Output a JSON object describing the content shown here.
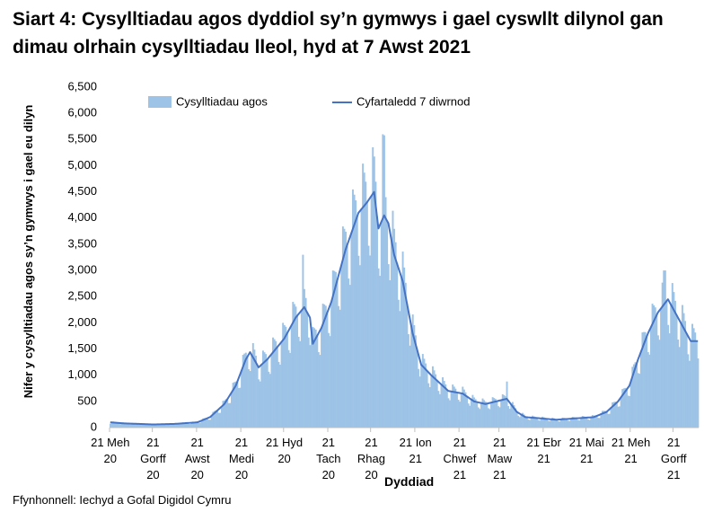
{
  "chart_data": {
    "type": "bar",
    "title": "Siart 4: Cysylltiadau agos dyddiol sy’n gymwys i gael cyswllt dilynol gan dimau olrhain cysylltiadau lleol, hyd at 7 Awst 2021",
    "y_label": "Nifer y cysylltiadau agos sy’n gymwys i gael eu dilyn",
    "x_label": "Dyddiad",
    "source": "Ffynhonnell: Iechyd a Gofal Digidol Cymru",
    "legend": "top",
    "grid": false,
    "ylim": [
      0,
      6500
    ],
    "yticks": [
      0,
      500,
      {
        "value": 1000,
        "label": "1,000"
      },
      {
        "value": 1500,
        "label": "1,500"
      },
      {
        "value": 2000,
        "label": "2,000"
      },
      {
        "value": 2500,
        "label": "2,500"
      },
      {
        "value": 3000,
        "label": "3,000"
      },
      {
        "value": 3500,
        "label": "3,500"
      },
      {
        "value": 4000,
        "label": "4,000"
      },
      {
        "value": 4500,
        "label": "4,500"
      },
      {
        "value": 5000,
        "label": "5,000"
      },
      {
        "value": 5500,
        "label": "5,500"
      },
      {
        "value": 6000,
        "label": "6,000"
      },
      {
        "value": 6500,
        "label": "6,500"
      }
    ],
    "categories": [
      "21 Meh 20",
      null,
      null,
      null,
      null,
      null,
      null,
      null,
      null,
      null,
      null,
      null,
      null,
      null,
      null,
      null,
      null,
      null,
      null,
      null,
      null,
      null,
      null,
      null,
      null,
      null,
      null,
      null,
      null,
      null,
      "21 Gorff 20",
      null,
      null,
      null,
      null,
      null,
      null,
      null,
      null,
      null,
      null,
      null,
      null,
      null,
      null,
      null,
      null,
      null,
      null,
      null,
      null,
      null,
      null,
      null,
      null,
      null,
      null,
      null,
      null,
      null,
      null,
      "21 Awst 20",
      null,
      null,
      null,
      null,
      null,
      null,
      null,
      null,
      null,
      null,
      null,
      null,
      null,
      null,
      null,
      null,
      null,
      null,
      null,
      null,
      null,
      null,
      null,
      null,
      null,
      null,
      null,
      null,
      null,
      null,
      "21 Medi 20",
      null,
      null,
      null,
      null,
      null,
      null,
      null,
      null,
      null,
      null,
      null,
      null,
      null,
      null,
      null,
      null,
      null,
      null,
      null,
      null,
      null,
      null,
      null,
      null,
      null,
      null,
      null,
      null,
      null,
      "21 Hyd 20",
      null,
      null,
      null,
      null,
      null,
      null,
      null,
      null,
      null,
      null,
      null,
      null,
      null,
      null,
      null,
      null,
      null,
      null,
      null,
      null,
      null,
      null,
      null,
      null,
      null,
      null,
      null,
      null,
      null,
      null,
      "21 Tach 20",
      null,
      null,
      null,
      null,
      null,
      null,
      null,
      null,
      null,
      null,
      null,
      null,
      null,
      null,
      null,
      null,
      null,
      null,
      null,
      null,
      null,
      null,
      null,
      null,
      null,
      null,
      null,
      null,
      null,
      "21 Rhag 20",
      null,
      null,
      null,
      null,
      null,
      null,
      null,
      null,
      null,
      null,
      null,
      null,
      null,
      null,
      null,
      null,
      null,
      null,
      null,
      null,
      null,
      null,
      null,
      null,
      null,
      null,
      null,
      null,
      null,
      null,
      "21 Ion 21",
      null,
      null,
      null,
      null,
      null,
      null,
      null,
      null,
      null,
      null,
      null,
      null,
      null,
      null,
      null,
      null,
      null,
      null,
      null,
      null,
      null,
      null,
      null,
      null,
      null,
      null,
      null,
      null,
      null,
      null,
      "21 Chwef 21",
      null,
      null,
      null,
      null,
      null,
      null,
      null,
      null,
      null,
      null,
      null,
      null,
      null,
      null,
      null,
      null,
      null,
      null,
      null,
      null,
      null,
      null,
      null,
      null,
      null,
      null,
      null,
      "21 Maw 21",
      null,
      null,
      null,
      null,
      null,
      null,
      null,
      null,
      null,
      null,
      null,
      null,
      null,
      null,
      null,
      null,
      null,
      null,
      null,
      null,
      null,
      null,
      null,
      null,
      null,
      null,
      null,
      null,
      null,
      null,
      "21 Ebr 21",
      null,
      null,
      null,
      null,
      null,
      null,
      null,
      null,
      null,
      null,
      null,
      null,
      null,
      null,
      null,
      null,
      null,
      null,
      null,
      null,
      null,
      null,
      null,
      null,
      null,
      null,
      null,
      null,
      null,
      "21 Mai 21",
      null,
      null,
      null,
      null,
      null,
      null,
      null,
      null,
      null,
      null,
      null,
      null,
      null,
      null,
      null,
      null,
      null,
      null,
      null,
      null,
      null,
      null,
      null,
      null,
      null,
      null,
      null,
      null,
      null,
      null,
      "21 Meh 21",
      null,
      null,
      null,
      null,
      null,
      null,
      null,
      null,
      null,
      null,
      null,
      null,
      null,
      null,
      null,
      null,
      null,
      null,
      null,
      null,
      null,
      null,
      null,
      null,
      null,
      null,
      null,
      null,
      null,
      "21 Gorff 21",
      null,
      null,
      null,
      null,
      null,
      null,
      null,
      null,
      null,
      null,
      null,
      null,
      null,
      null,
      null,
      null,
      null
    ],
    "series": [
      {
        "name": "Cysylltiadau agos",
        "type": "bar",
        "color": "#9dc3e6",
        "values": [
          75,
          98,
          115,
          108,
          101,
          90,
          70,
          65,
          84,
          98,
          92,
          87,
          78,
          62,
          57,
          75,
          89,
          84,
          79,
          71,
          56,
          52,
          68,
          80,
          76,
          72,
          64,
          50,
          47,
          61,
          72,
          70,
          67,
          62,
          50,
          47,
          64,
          78,
          75,
          73,
          67,
          54,
          51,
          69,
          83,
          81,
          79,
          74,
          61,
          59,
          80,
          98,
          95,
          94,
          87,
          71,
          68,
          93,
          114,
          110,
          108,
          100,
          89,
          92,
          133,
          173,
          179,
          184,
          178,
          151,
          150,
          225,
          300,
          316,
          330,
          325,
          280,
          281,
          400,
          510,
          518,
          543,
          538,
          465,
          469,
          669,
          856,
          869,
          880,
          871,
          754,
          761,
          1086,
          1388,
          1413,
          1430,
          1347,
          1114,
          1080,
          1392,
          1612,
          1489,
          1372,
          1198,
          920,
          881,
          1200,
          1470,
          1438,
          1403,
          1300,
          1066,
          1025,
          1400,
          1720,
          1687,
          1650,
          1533,
          1254,
          1200,
          1633,
          2000,
          1955,
          1925,
          1800,
          1480,
          1425,
          1950,
          2400,
          2358,
          2310,
          2133,
          1734,
          1650,
          2233,
          3300,
          2645,
          2475,
          2200,
          1720,
          1575,
          1850,
          1920,
          1898,
          1870,
          1750,
          1440,
          1388,
          1900,
          2365,
          2349,
          2325,
          2186,
          1806,
          1747,
          2400,
          3000,
          2990,
          2970,
          2800,
          2320,
          2250,
          3100,
          3840,
          3795,
          3740,
          3478,
          2845,
          2725,
          3711,
          4547,
          4447,
          4338,
          4022,
          3280,
          3100,
          4167,
          5040,
          4868,
          4694,
          4300,
          3472,
          3285,
          4420,
          5352,
          5175,
          4694,
          4033,
          3040,
          2897,
          3925,
          5600,
          5580,
          4400,
          3950,
          3120,
          2813,
          3600,
          4140,
          3795,
          3539,
          3133,
          2440,
          2225,
          2883,
          3360,
          3056,
          2765,
          2371,
          1783,
          1565,
          1943,
          2160,
          1955,
          1760,
          1500,
          1120,
          975,
          1200,
          1405,
          1314,
          1225,
          1086,
          846,
          772,
          1000,
          1170,
          1093,
          1018,
          900,
          700,
          638,
          825,
          960,
          891,
          825,
          725,
          560,
          521,
          690,
          822,
          782,
          743,
          670,
          532,
          495,
          655,
          780,
          726,
          674,
          594,
          460,
          417,
          538,
          623,
          575,
          543,
          488,
          385,
          356,
          469,
          556,
          524,
          495,
          457,
          370,
          353,
          477,
          580,
          564,
          547,
          503,
          408,
          388,
          523,
          636,
          618,
          597,
          880,
          411,
          359,
          443,
          488,
          427,
          370,
          300,
          226,
          200,
          250,
          280,
          250,
          220,
          198,
          156,
          145,
          191,
          227,
          214,
          202,
          182,
          144,
          133,
          175,
          208,
          196,
          185,
          166,
          131,
          121,
          159,
          188,
          178,
          167,
          150,
          122,
          116,
          156,
          190,
          184,
          178,
          163,
          132,
          125,
          169,
          205,
          199,
          193,
          177,
          143,
          136,
          183,
          222,
          215,
          207,
          190,
          154,
          146,
          196,
          238,
          230,
          232,
          222,
          186,
          183,
          256,
          320,
          320,
          318,
          300,
          260,
          263,
          375,
          480,
          489,
          495,
          475,
          400,
          404,
          575,
          736,
          748,
          757,
          725,
          610,
          600,
          883,
          1160,
          1208,
          1246,
          1217,
          1040,
          1028,
          1443,
          1817,
          1824,
          1823,
          1729,
          1440,
          1393,
          1914,
          2365,
          2333,
          2295,
          2143,
          1760,
          1677,
          2271,
          2768,
          3000,
          3000,
          2414,
          1960,
          1800,
          2350,
          2760,
          2588,
          2420,
          2150,
          1680,
          1538,
          2000,
          2340,
          2185,
          2035,
          1800,
          1400,
          1275,
          1650,
          1980,
          1898,
          1815,
          1650,
          1320
        ]
      },
      {
        "name": "Cyfartaledd 7 diwrnod",
        "type": "line",
        "color": "#4472c4",
        "values": [
          100,
          98,
          96,
          94,
          92,
          90,
          88,
          86,
          84,
          82,
          80,
          79,
          78,
          77,
          76,
          75,
          74,
          73,
          72,
          71,
          70,
          69,
          68,
          67,
          66,
          65,
          64,
          63,
          62,
          61,
          60,
          61,
          61,
          62,
          63,
          63,
          64,
          65,
          65,
          66,
          67,
          67,
          68,
          69,
          69,
          70,
          72,
          74,
          76,
          78,
          80,
          82,
          83,
          85,
          87,
          89,
          91,
          93,
          95,
          96,
          98,
          100,
          111,
          122,
          133,
          144,
          156,
          167,
          178,
          189,
          200,
          225,
          250,
          275,
          300,
          325,
          350,
          375,
          400,
          425,
          450,
          494,
          538,
          581,
          625,
          669,
          713,
          756,
          800,
          871,
          943,
          1014,
          1086,
          1157,
          1229,
          1300,
          1347,
          1393,
          1440,
          1392,
          1343,
          1295,
          1247,
          1198,
          1150,
          1175,
          1200,
          1225,
          1250,
          1275,
          1300,
          1333,
          1367,
          1400,
          1433,
          1467,
          1500,
          1533,
          1567,
          1600,
          1633,
          1667,
          1700,
          1750,
          1800,
          1850,
          1900,
          1950,
          2000,
          2050,
          2100,
          2133,
          2167,
          2200,
          2233,
          2267,
          2300,
          2250,
          2200,
          2150,
          2100,
          1850,
          1600,
          1650,
          1700,
          1750,
          1800,
          1850,
          1900,
          1971,
          2043,
          2114,
          2186,
          2257,
          2329,
          2400,
          2500,
          2600,
          2700,
          2800,
          2900,
          3000,
          3100,
          3200,
          3300,
          3400,
          3478,
          3556,
          3633,
          3711,
          3789,
          3867,
          3944,
          4022,
          4100,
          4133,
          4167,
          4200,
          4233,
          4267,
          4300,
          4340,
          4380,
          4420,
          4460,
          4500,
          4267,
          4033,
          3800,
          3863,
          3925,
          3988,
          4050,
          4000,
          3950,
          3900,
          3750,
          3600,
          3450,
          3300,
          3217,
          3133,
          3050,
          2967,
          2883,
          2800,
          2657,
          2514,
          2371,
          2229,
          2086,
          1943,
          1800,
          1700,
          1600,
          1500,
          1400,
          1300,
          1200,
          1171,
          1143,
          1114,
          1086,
          1057,
          1029,
          1000,
          975,
          950,
          925,
          900,
          875,
          850,
          825,
          800,
          775,
          750,
          725,
          700,
          695,
          690,
          685,
          680,
          675,
          670,
          665,
          660,
          655,
          650,
          631,
          613,
          594,
          575,
          556,
          538,
          519,
          500,
          494,
          488,
          481,
          475,
          469,
          463,
          456,
          450,
          457,
          463,
          470,
          477,
          483,
          490,
          497,
          503,
          510,
          517,
          523,
          530,
          537,
          543,
          550,
          514,
          479,
          443,
          407,
          371,
          336,
          300,
          283,
          267,
          250,
          233,
          217,
          200,
          198,
          195,
          193,
          191,
          189,
          186,
          184,
          182,
          180,
          177,
          175,
          173,
          170,
          168,
          166,
          164,
          161,
          159,
          157,
          155,
          152,
          150,
          152,
          154,
          156,
          158,
          160,
          162,
          163,
          165,
          167,
          169,
          171,
          173,
          175,
          177,
          179,
          181,
          183,
          185,
          187,
          188,
          190,
          192,
          194,
          196,
          198,
          200,
          211,
          222,
          233,
          244,
          256,
          267,
          278,
          289,
          300,
          325,
          350,
          375,
          400,
          425,
          450,
          475,
          500,
          538,
          575,
          613,
          650,
          688,
          725,
          763,
          800,
          883,
          967,
          1050,
          1133,
          1217,
          1300,
          1371,
          1443,
          1514,
          1586,
          1657,
          1729,
          1800,
          1857,
          1914,
          1971,
          2029,
          2086,
          2143,
          2200,
          2236,
          2271,
          2307,
          2343,
          2379,
          2414,
          2450,
          2400,
          2350,
          2300,
          2250,
          2200,
          2150,
          2100,
          2050,
          2000,
          1950,
          1900,
          1850,
          1800,
          1750,
          1700,
          1650,
          1650,
          1650,
          1650,
          1650,
          1650
        ]
      }
    ]
  }
}
